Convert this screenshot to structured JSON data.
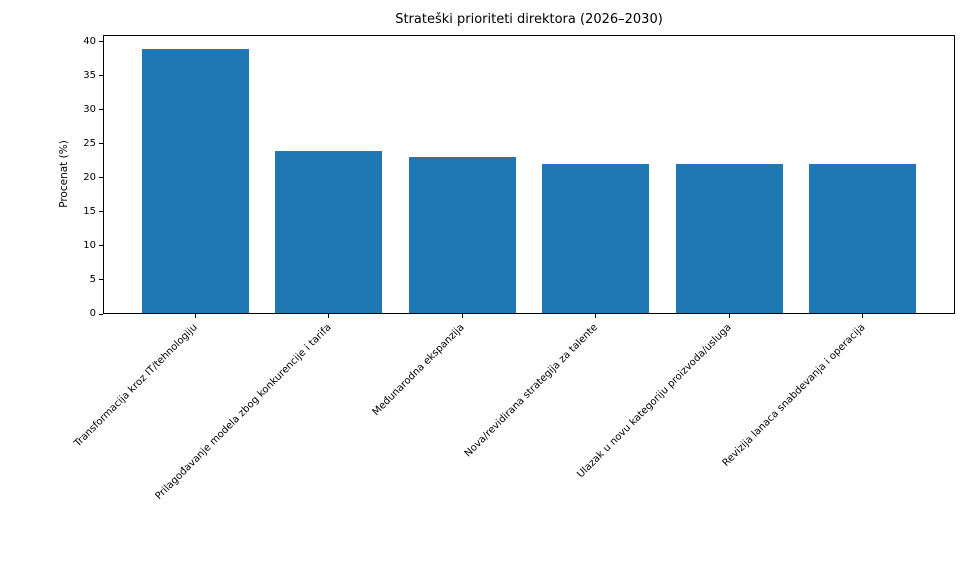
{
  "chart_data": {
    "type": "bar",
    "title": "Strateški prioriteti direktora (2026–2030)",
    "categories": [
      "Transformacija kroz IT/tehnologiju",
      "Prilagođavanje modela zbog konkurencije i tarifa",
      "Međunarodna ekspanzija",
      "Nova/revidirana strategija za talente",
      "Ulazak u novu kategoriju proizvoda/usluga",
      "Revizija lanaca snabdevanja i operacija"
    ],
    "values": [
      39,
      24,
      23,
      22,
      22,
      22
    ],
    "xlabel": "",
    "ylabel": "Procenat (%)",
    "ylim": [
      0,
      41
    ],
    "yticks": [
      0,
      5,
      10,
      15,
      20,
      25,
      30,
      35,
      40
    ],
    "bar_color": "#1f77b4",
    "background_color": "#ffffff",
    "grid": false,
    "legend": null,
    "x_label_rotation_deg": 45
  }
}
